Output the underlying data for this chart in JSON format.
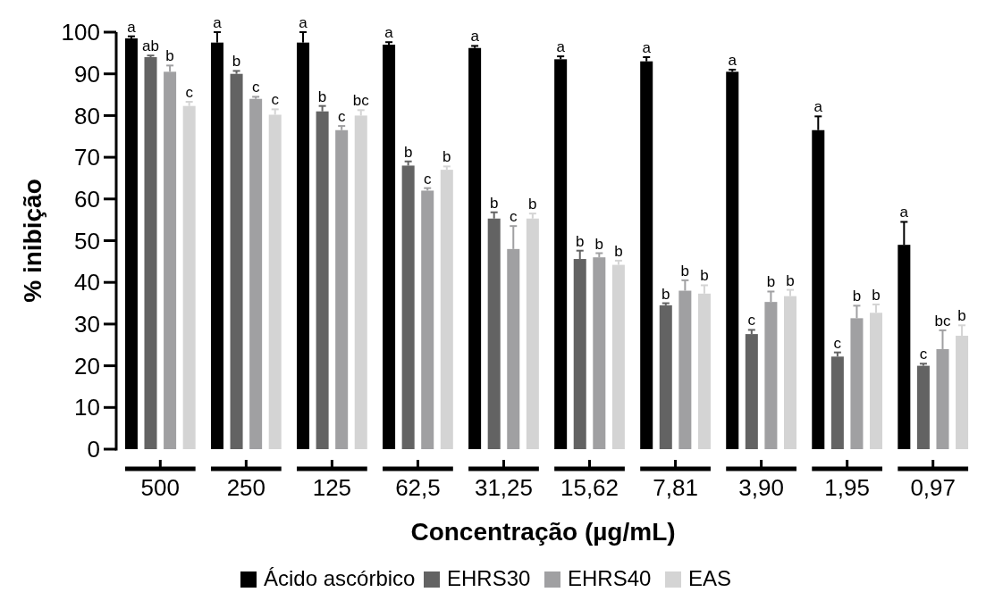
{
  "chart_data": {
    "type": "bar",
    "xlabel": "Concentração (µg/mL)",
    "ylabel": "% inibição",
    "categories": [
      "500",
      "250",
      "125",
      "62,5",
      "31,25",
      "15,62",
      "7,81",
      "3,90",
      "1,95",
      "0,97"
    ],
    "ylim": [
      0,
      100
    ],
    "yticks": [
      0,
      10,
      20,
      30,
      40,
      50,
      60,
      70,
      80,
      90,
      100
    ],
    "grid": false,
    "legend": "bottom",
    "series": [
      {
        "name": "Ácido ascórbico",
        "color": "#000000",
        "values": [
          98.5,
          97.5,
          97.5,
          97,
          96.2,
          93.5,
          93,
          90.5,
          76.5,
          49
        ],
        "errors": [
          0.5,
          2.5,
          2.5,
          0.6,
          0.5,
          0.7,
          1,
          0.5,
          3.3,
          5.5
        ]
      },
      {
        "name": "EHRS30",
        "color": "#636363",
        "values": [
          94,
          90,
          81,
          68,
          55.3,
          45.6,
          34.5,
          27.6,
          22.2,
          20
        ],
        "errors": [
          0.4,
          0.7,
          1.3,
          1,
          1.5,
          2,
          0.5,
          1,
          1,
          0.5
        ]
      },
      {
        "name": "EHRS40",
        "color": "#a0a0a2",
        "values": [
          90.5,
          84,
          76.5,
          62,
          48,
          46,
          38,
          35.3,
          31.4,
          24
        ],
        "errors": [
          1.5,
          0.5,
          1,
          0.6,
          5.5,
          1,
          2.5,
          2.5,
          3,
          4.5
        ]
      },
      {
        "name": "EAS",
        "color": "#d4d4d4",
        "values": [
          82.3,
          80.2,
          80,
          67,
          55.3,
          44.2,
          37.3,
          36.7,
          32.7,
          27.2
        ],
        "errors": [
          1,
          1.3,
          1.3,
          0.8,
          1.2,
          1,
          2,
          1.5,
          2,
          2.5
        ]
      }
    ],
    "annotations": [
      "a",
      "ab",
      "b",
      "c",
      "a",
      "b",
      "c",
      "c",
      "a",
      "b",
      "c",
      "bc",
      "a",
      "b",
      "c",
      "b",
      "a",
      "b",
      "c",
      "b",
      "a",
      "b",
      "b",
      "b",
      "a",
      "b",
      "b",
      "b",
      "a",
      "c",
      "b",
      "b",
      "a",
      "c",
      "b",
      "b",
      "a",
      "c",
      "bc",
      "b"
    ]
  }
}
